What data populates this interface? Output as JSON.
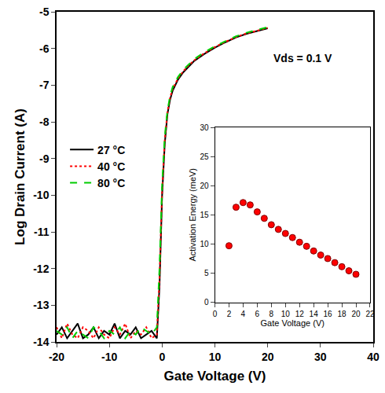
{
  "chart_data": [
    {
      "type": "line",
      "x_label": "Gate Voltage (V)",
      "y_label": "Log Drain Current (A)",
      "annotations": [
        "Vds = 0.1 V"
      ],
      "x": [
        -20,
        -19,
        -18,
        -17,
        -16,
        -15,
        -14,
        -13,
        -12,
        -11,
        -10,
        -9,
        -8,
        -7,
        -6,
        -5,
        -4,
        -3,
        -2,
        -1,
        -0.5,
        0,
        0.5,
        1,
        1.5,
        2,
        3,
        4,
        5,
        6,
        8,
        10,
        12,
        14,
        16,
        18,
        20
      ],
      "series": [
        {
          "name": "27 °C",
          "color": "#000000",
          "line_style": "solid",
          "values": [
            -13.8,
            -13.6,
            -13.9,
            -13.7,
            -13.5,
            -13.9,
            -13.8,
            -13.6,
            -13.9,
            -13.7,
            -13.8,
            -13.5,
            -13.9,
            -13.7,
            -13.8,
            -13.6,
            -13.9,
            -13.8,
            -13.7,
            -13.9,
            -12.5,
            -10.0,
            -8.6,
            -7.8,
            -7.4,
            -7.15,
            -6.85,
            -6.65,
            -6.5,
            -6.35,
            -6.15,
            -5.98,
            -5.83,
            -5.7,
            -5.6,
            -5.52,
            -5.45
          ]
        },
        {
          "name": "40 °C",
          "color": "#ff0000",
          "line_style": "dotted",
          "values": [
            -13.6,
            -13.9,
            -13.5,
            -13.8,
            -13.9,
            -13.6,
            -13.7,
            -13.9,
            -13.6,
            -13.8,
            -13.9,
            -13.6,
            -13.8,
            -13.5,
            -13.9,
            -13.7,
            -13.8,
            -13.6,
            -13.9,
            -13.8,
            -12.3,
            -9.9,
            -8.5,
            -7.75,
            -7.35,
            -7.1,
            -6.82,
            -6.62,
            -6.47,
            -6.33,
            -6.13,
            -5.96,
            -5.82,
            -5.69,
            -5.59,
            -5.51,
            -5.44
          ]
        },
        {
          "name": "80 °C",
          "color": "#00cc00",
          "line_style": "dashed",
          "values": [
            -13.7,
            -13.8,
            -13.6,
            -13.9,
            -13.7,
            -13.8,
            -13.9,
            -13.6,
            -13.7,
            -13.9,
            -13.7,
            -13.8,
            -13.6,
            -13.9,
            -13.7,
            -13.8,
            -13.6,
            -13.7,
            -13.8,
            -13.6,
            -12.0,
            -9.7,
            -8.4,
            -7.7,
            -7.3,
            -7.05,
            -6.78,
            -6.58,
            -6.43,
            -6.3,
            -6.1,
            -5.94,
            -5.8,
            -5.67,
            -5.57,
            -5.49,
            -5.42
          ]
        }
      ],
      "xlim": [
        -20,
        40
      ],
      "ylim": [
        -14,
        -5
      ],
      "xticks": [
        -20,
        -10,
        0,
        10,
        20,
        30,
        40
      ],
      "yticks": [
        -14,
        -13,
        -12,
        -11,
        -10,
        -9,
        -8,
        -7,
        -6,
        -5
      ],
      "legend": "upper left",
      "grid": false
    },
    {
      "type": "scatter",
      "x_label": "Gate Voltage (V)",
      "y_label": "Activation Energy (meV)",
      "x": [
        2,
        3,
        4,
        5,
        6,
        7,
        8,
        9,
        10,
        11,
        12,
        13,
        14,
        15,
        16,
        17,
        18,
        19,
        20
      ],
      "values": [
        9.7,
        16.3,
        17.1,
        16.7,
        15.5,
        14.4,
        13.3,
        12.5,
        11.8,
        11.1,
        10.3,
        9.6,
        8.8,
        8.1,
        7.5,
        6.8,
        6.1,
        5.4,
        4.8
      ],
      "color": "#ff0000",
      "marker": "circle",
      "xlim": [
        0,
        22
      ],
      "ylim": [
        0,
        30
      ],
      "xticks": [
        0,
        2,
        4,
        6,
        8,
        10,
        12,
        14,
        16,
        18,
        20,
        22
      ],
      "yticks": [
        0,
        5,
        10,
        15,
        20,
        25,
        30
      ],
      "grid": false
    }
  ]
}
